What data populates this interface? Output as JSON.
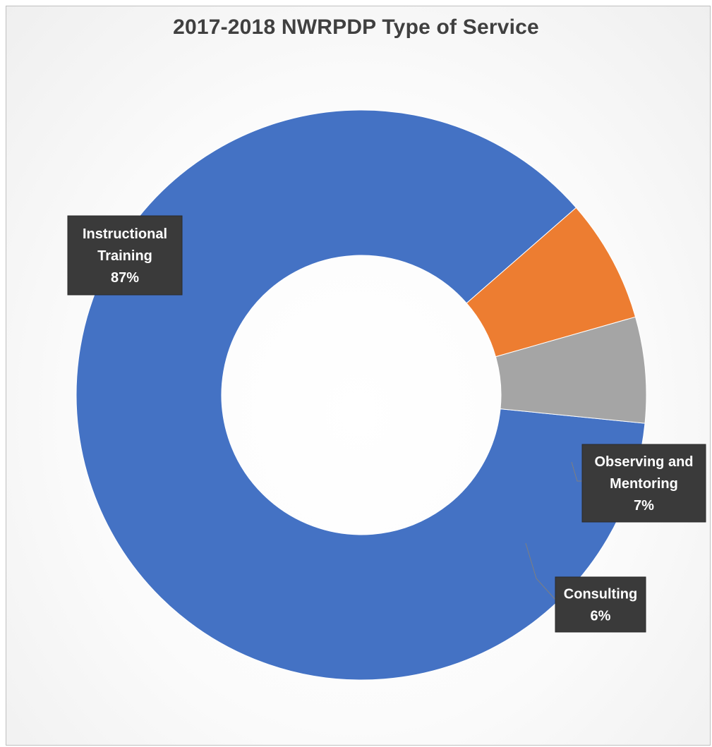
{
  "chart_data": {
    "type": "pie",
    "variant": "doughnut",
    "title": "2017-2018 NWRPDP Type of Service",
    "slices": [
      {
        "name": "Instructional Training",
        "label_lines": [
          "Instructional",
          "Training"
        ],
        "value": 87,
        "value_label": "87%",
        "color": "#4472C4"
      },
      {
        "name": "Observing and Mentoring",
        "label_lines": [
          "Observing and",
          "Mentoring"
        ],
        "value": 7,
        "value_label": "7%",
        "color": "#ED7D31"
      },
      {
        "name": "Consulting",
        "label_lines": [
          "Consulting"
        ],
        "value": 6,
        "value_label": "6%",
        "color": "#A5A5A5"
      }
    ],
    "legend": "none"
  }
}
